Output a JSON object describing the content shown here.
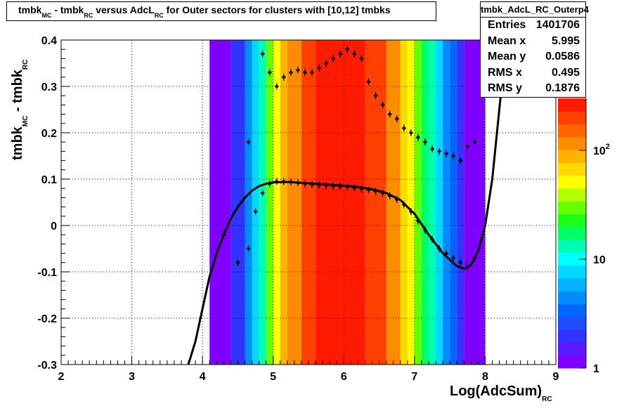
{
  "title": {
    "parts": [
      {
        "text": "tmbk",
        "sub": "MC"
      },
      {
        "text": " - tmbk",
        "sub": "RC"
      },
      {
        "text": " versus AdcL",
        "sub": "RC"
      },
      {
        "text": " for Outer sectors for clusters with [10,12] tmbks",
        "sub": ""
      }
    ]
  },
  "stats": {
    "name": "tmbk_AdcL_RC_Outerp4",
    "rows": [
      {
        "label": "Entries",
        "value": "1401706"
      },
      {
        "label": "Mean x",
        "value": "5.995"
      },
      {
        "label": "Mean y",
        "value": "0.0586"
      },
      {
        "label": "RMS x",
        "value": "0.495"
      },
      {
        "label": "RMS y",
        "value": "0.1876"
      }
    ]
  },
  "xaxis": {
    "label": "Log(AdcSum)",
    "label_sub": "RC"
  },
  "yaxis": {
    "label": "tmbk",
    "label_sub1": "MC",
    "label_mid": " - tmbk",
    "label_sub2": "RC"
  },
  "colorbar": {
    "labels": [
      {
        "value": 1,
        "text": "1"
      },
      {
        "value": 10,
        "text": "10"
      },
      {
        "value": 100,
        "text": "10",
        "sup": "2"
      }
    ]
  },
  "colors": {
    "palette": [
      "#7f00ff",
      "#5a1aff",
      "#3333ff",
      "#1f4cff",
      "#0066ff",
      "#008cff",
      "#00b2ff",
      "#00d9ff",
      "#00ffff",
      "#00ffb2",
      "#00ff66",
      "#1aff1a",
      "#66ff00",
      "#b2ff00",
      "#ffff00",
      "#ffd900",
      "#ffb200",
      "#ff8c00",
      "#ff6600",
      "#ff4000",
      "#ff1a00"
    ],
    "fit_line": "#000000"
  },
  "chart_data": {
    "type": "heatmap",
    "xlim": [
      2,
      9
    ],
    "ylim": [
      -0.3,
      0.4
    ],
    "x_ticks": [
      2,
      3,
      4,
      5,
      6,
      7,
      8,
      9
    ],
    "y_ticks": [
      -0.3,
      -0.2,
      -0.1,
      0,
      0.1,
      0.2,
      0.3,
      0.4
    ],
    "z_scale": "log",
    "zlim": [
      1,
      300
    ],
    "density_columns": [
      {
        "x0": 4.1,
        "x1": 4.4,
        "z": 1
      },
      {
        "x0": 4.4,
        "x1": 4.6,
        "z": 2
      },
      {
        "x0": 4.6,
        "x1": 4.7,
        "z": 4
      },
      {
        "x0": 4.7,
        "x1": 4.8,
        "z": 8
      },
      {
        "x0": 4.8,
        "x1": 4.9,
        "z": 14
      },
      {
        "x0": 4.9,
        "x1": 5.0,
        "z": 30
      },
      {
        "x0": 5.0,
        "x1": 5.1,
        "z": 50
      },
      {
        "x0": 5.1,
        "x1": 5.2,
        "z": 80
      },
      {
        "x0": 5.2,
        "x1": 5.4,
        "z": 130
      },
      {
        "x0": 5.4,
        "x1": 5.6,
        "z": 180
      },
      {
        "x0": 5.6,
        "x1": 6.3,
        "z": 260
      },
      {
        "x0": 6.3,
        "x1": 6.6,
        "z": 180
      },
      {
        "x0": 6.6,
        "x1": 6.8,
        "z": 110
      },
      {
        "x0": 6.8,
        "x1": 6.9,
        "z": 70
      },
      {
        "x0": 6.9,
        "x1": 7.0,
        "z": 50
      },
      {
        "x0": 7.0,
        "x1": 7.1,
        "z": 30
      },
      {
        "x0": 7.1,
        "x1": 7.2,
        "z": 18
      },
      {
        "x0": 7.2,
        "x1": 7.3,
        "z": 12
      },
      {
        "x0": 7.3,
        "x1": 7.4,
        "z": 8
      },
      {
        "x0": 7.4,
        "x1": 7.5,
        "z": 5
      },
      {
        "x0": 7.5,
        "x1": 7.6,
        "z": 3
      },
      {
        "x0": 7.6,
        "x1": 7.7,
        "z": 2
      },
      {
        "x0": 7.7,
        "x1": 8.0,
        "z": 1
      }
    ],
    "series": [
      {
        "kind": "profile_mean",
        "x": [
          4.3,
          4.5,
          4.65,
          4.75,
          4.85,
          4.95,
          5.05,
          5.15,
          5.25,
          5.35,
          5.45,
          5.55,
          5.65,
          5.75,
          5.85,
          5.95,
          6.05,
          6.15,
          6.25,
          6.35,
          6.45,
          6.55,
          6.65,
          6.75,
          6.85,
          6.95,
          7.05,
          7.15,
          7.25,
          7.35,
          7.45,
          7.55,
          7.65,
          7.75,
          7.85
        ],
        "y": [
          -0.02,
          -0.08,
          -0.05,
          0.03,
          0.07,
          0.09,
          0.095,
          0.095,
          0.094,
          0.092,
          0.09,
          0.088,
          0.087,
          0.086,
          0.085,
          0.084,
          0.083,
          0.081,
          0.079,
          0.077,
          0.074,
          0.07,
          0.064,
          0.056,
          0.045,
          0.03,
          0.01,
          -0.01,
          -0.03,
          -0.05,
          -0.06,
          -0.07,
          -0.08,
          -0.09,
          -0.07
        ]
      },
      {
        "kind": "profile_rms",
        "x": [
          4.65,
          4.85,
          4.95,
          5.05,
          5.15,
          5.25,
          5.35,
          5.45,
          5.55,
          5.65,
          5.75,
          5.85,
          5.95,
          6.05,
          6.15,
          6.25,
          6.35,
          6.45,
          6.55,
          6.65,
          6.75,
          6.85,
          6.95,
          7.05,
          7.15,
          7.25,
          7.35,
          7.45,
          7.55,
          7.65,
          7.75,
          7.85
        ],
        "y": [
          0.18,
          0.37,
          0.33,
          0.3,
          0.32,
          0.33,
          0.335,
          0.33,
          0.33,
          0.34,
          0.35,
          0.36,
          0.37,
          0.38,
          0.37,
          0.36,
          0.31,
          0.28,
          0.26,
          0.24,
          0.23,
          0.21,
          0.2,
          0.19,
          0.18,
          0.165,
          0.16,
          0.155,
          0.15,
          0.14,
          0.17,
          0.18
        ]
      },
      {
        "kind": "fit",
        "x": [
          3.8,
          3.9,
          4.0,
          4.1,
          4.2,
          4.3,
          4.4,
          4.5,
          4.6,
          4.7,
          4.8,
          4.9,
          5.0,
          5.2,
          5.4,
          5.6,
          5.8,
          6.0,
          6.2,
          6.4,
          6.6,
          6.8,
          7.0,
          7.2,
          7.4,
          7.6,
          7.7,
          7.8,
          7.9,
          8.0,
          8.1,
          8.2,
          8.3
        ],
        "y": [
          -0.3,
          -0.25,
          -0.18,
          -0.11,
          -0.06,
          -0.02,
          0.015,
          0.04,
          0.06,
          0.075,
          0.085,
          0.09,
          0.093,
          0.094,
          0.092,
          0.09,
          0.088,
          0.086,
          0.083,
          0.078,
          0.07,
          0.055,
          0.025,
          -0.02,
          -0.06,
          -0.088,
          -0.093,
          -0.085,
          -0.055,
          0.0,
          0.1,
          0.25,
          0.4
        ]
      }
    ]
  }
}
